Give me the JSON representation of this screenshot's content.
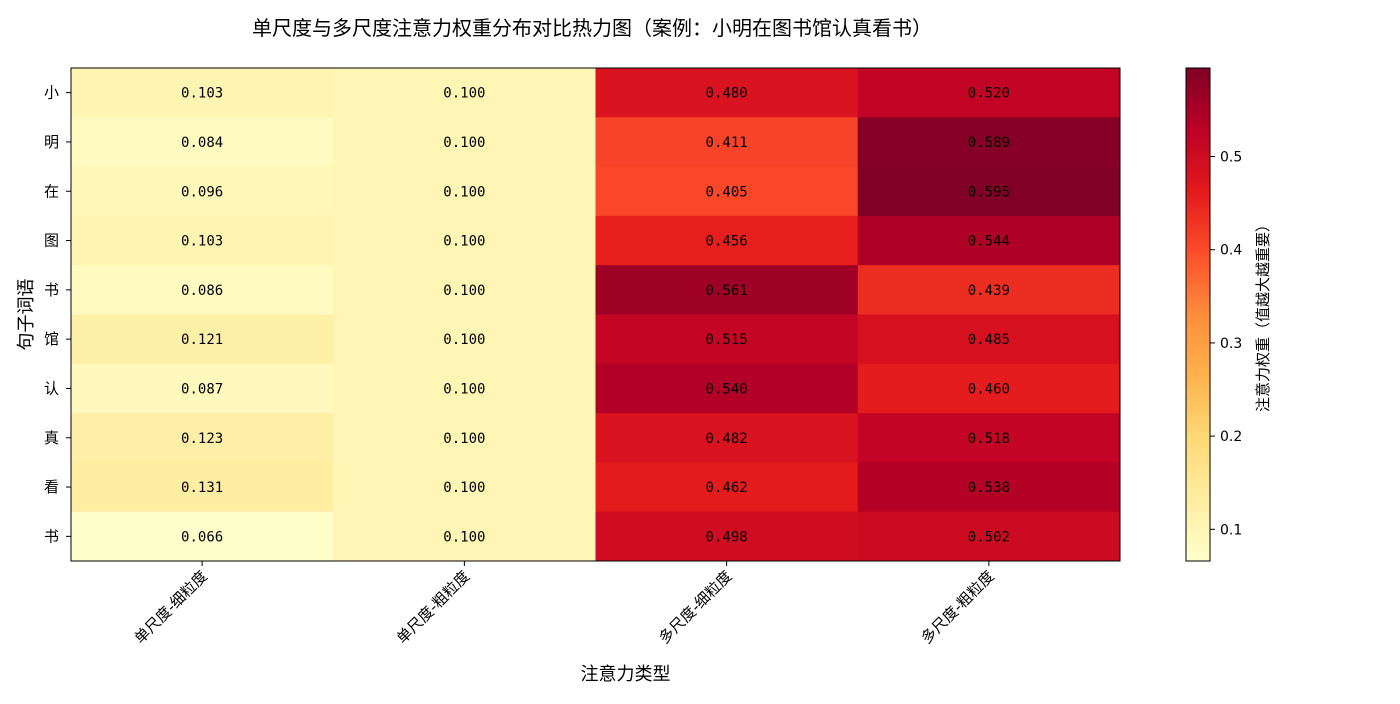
{
  "chart_data": {
    "type": "heatmap",
    "title": "单尺度与多尺度注意力权重分布对比热力图（案例：小明在图书馆认真看书）",
    "xlabel": "注意力类型",
    "ylabel": "句子词语",
    "x_categories": [
      "单尺度-细粒度",
      "单尺度-粗粒度",
      "多尺度-细粒度",
      "多尺度-粗粒度"
    ],
    "y_categories": [
      "小",
      "明",
      "在",
      "图",
      "书",
      "馆",
      "认",
      "真",
      "看",
      "书"
    ],
    "values": [
      [
        0.103,
        0.1,
        0.48,
        0.52
      ],
      [
        0.084,
        0.1,
        0.411,
        0.589
      ],
      [
        0.096,
        0.1,
        0.405,
        0.595
      ],
      [
        0.103,
        0.1,
        0.456,
        0.544
      ],
      [
        0.086,
        0.1,
        0.561,
        0.439
      ],
      [
        0.121,
        0.1,
        0.515,
        0.485
      ],
      [
        0.087,
        0.1,
        0.54,
        0.46
      ],
      [
        0.123,
        0.1,
        0.482,
        0.518
      ],
      [
        0.131,
        0.1,
        0.462,
        0.538
      ],
      [
        0.066,
        0.1,
        0.498,
        0.502
      ]
    ],
    "value_format": "0.000",
    "colormap": "YlOrRd",
    "colormap_stops": [
      "#ffffcc",
      "#ffeda0",
      "#fed976",
      "#feb24c",
      "#fd8d3c",
      "#fc4e2a",
      "#e31a1c",
      "#bd0026",
      "#800026"
    ],
    "vmin": 0.066,
    "vmax": 0.595,
    "colorbar": {
      "label": "注意力权重（值越大越重要）",
      "ticks": [
        0.1,
        0.2,
        0.3,
        0.4,
        0.5
      ],
      "tick_labels": [
        "0.1",
        "0.2",
        "0.3",
        "0.4",
        "0.5"
      ],
      "placement": "right"
    },
    "grid": false,
    "x_tick_rotation_deg": 45
  }
}
